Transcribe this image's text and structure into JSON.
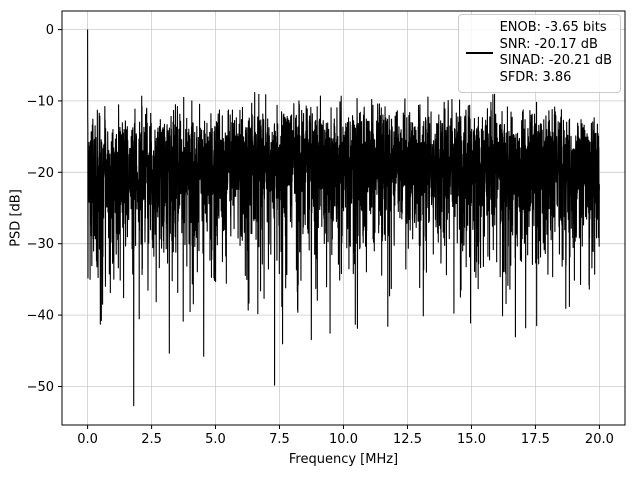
{
  "chart_data": {
    "type": "line",
    "title": "",
    "xlabel": "Frequency [MHz]",
    "ylabel": "PSD [dB]",
    "xlim": [
      -1,
      21
    ],
    "ylim": [
      -55.4,
      2.6
    ],
    "xticks": [
      0.0,
      2.5,
      5.0,
      7.5,
      10.0,
      12.5,
      15.0,
      17.5,
      20.0
    ],
    "xtick_labels": [
      "0.0",
      "2.5",
      "5.0",
      "7.5",
      "10.0",
      "12.5",
      "15.0",
      "17.5",
      "20.0"
    ],
    "yticks": [
      0,
      -10,
      -20,
      -30,
      -40,
      -50
    ],
    "ytick_labels": [
      "0",
      "−10",
      "−20",
      "−30",
      "−40",
      "−50"
    ],
    "grid": true,
    "grid_color": "#cccccc",
    "line_color": "#000000",
    "legend": {
      "position": "upper right",
      "entries": [
        {
          "line_color": "#000000",
          "label_lines": [
            "ENOB: -3.65 bits",
            "SNR: -20.17 dB",
            "SINAD: -20.21 dB",
            "SFDR: 3.86"
          ]
        }
      ]
    },
    "series": [
      {
        "name": "psd",
        "points": 4096,
        "freq_range_mhz": [
          0,
          20
        ],
        "noise_model": "exp_log",
        "base_db": -18.5,
        "hump_db": 1.2,
        "noise_floor_db_mean": -20,
        "min_db": -52.7,
        "max_db": -8.0,
        "dc_spike": {
          "freq_mhz": 0,
          "level_db": 0
        },
        "seed": 7
      }
    ]
  }
}
